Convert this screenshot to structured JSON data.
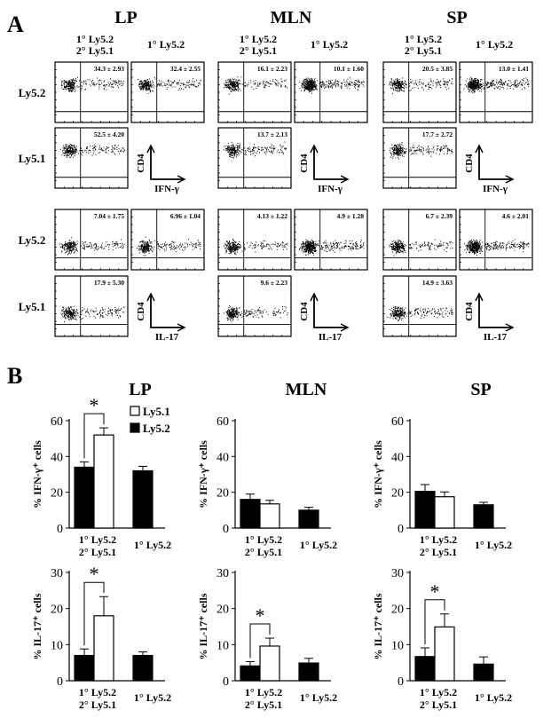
{
  "panel_a": {
    "letter": "A",
    "groups": [
      {
        "title": "LP",
        "col1_header": [
          "1° Ly5.2",
          "2° Ly5.1"
        ],
        "col2_header": "1° Ly5.2"
      },
      {
        "title": "MLN",
        "col1_header": [
          "1° Ly5.2",
          "2° Ly5.1"
        ],
        "col2_header": "1° Ly5.2"
      },
      {
        "title": "SP",
        "col1_header": [
          "1° Ly5.2",
          "2° Ly5.1"
        ],
        "col2_header": "1° Ly5.2"
      }
    ],
    "row_labels": [
      "Ly5.2",
      "Ly5.1",
      "Ly5.2",
      "Ly5.1"
    ],
    "plot_values": [
      [
        "34.3 ± 2.93",
        "32.4 ± 2.55",
        "16.1 ± 2.23",
        "10.1 ± 1.60",
        "20.5 ± 3.85",
        "13.0 ± 1.41"
      ],
      [
        "52.5 ± 4.20",
        "",
        "13.7 ± 2.13",
        "",
        "17.7 ± 2.72",
        ""
      ],
      [
        "7.04 ± 1.75",
        "6.96 ± 1.04",
        "4.13 ± 1.22",
        "4.9 ± 1.28",
        "6.7 ± 2.39",
        "4.6 ± 2.01"
      ],
      [
        "17.9 ± 5.30",
        "",
        "9.6 ± 2.23",
        "",
        "14.9 ± 3.63",
        ""
      ]
    ],
    "axis_labels": {
      "y": "CD4",
      "x_ifn": "IFN-γ",
      "x_il17": "IL-17"
    }
  },
  "panel_b": {
    "letter": "B",
    "titles": [
      "LP",
      "MLN",
      "SP"
    ],
    "legend": {
      "open_label": "Ly5.1",
      "filled_label": "Ly5.2"
    },
    "xgroup1": [
      "1° Ly5.2",
      "2° Ly5.1"
    ],
    "xgroup2": "1° Ly5.2",
    "ylabel_ifn": "% IFN-γ⁺ cells",
    "ylabel_il17": "% IL-17⁺ cells",
    "significance": "*"
  },
  "chart_data": [
    {
      "type": "bar",
      "title": "LP",
      "ylabel": "% IFN-γ+ cells",
      "ylim": [
        0,
        60
      ],
      "yticks": [
        0,
        20,
        40,
        60
      ],
      "categories": [
        "1° Ly5.2 / 2° Ly5.1",
        "1° Ly5.2"
      ],
      "series": [
        {
          "name": "Ly5.2",
          "values": [
            34,
            32
          ],
          "errors": [
            3,
            2.5
          ]
        },
        {
          "name": "Ly5.1",
          "values": [
            52,
            null
          ],
          "errors": [
            4,
            null
          ]
        }
      ],
      "significant_pair": true
    },
    {
      "type": "bar",
      "title": "MLN",
      "ylabel": "% IFN-γ+ cells",
      "ylim": [
        0,
        60
      ],
      "yticks": [
        0,
        20,
        40,
        60
      ],
      "categories": [
        "1° Ly5.2 / 2° Ly5.1",
        "1° Ly5.2"
      ],
      "series": [
        {
          "name": "Ly5.2",
          "values": [
            16,
            10
          ],
          "errors": [
            3,
            1.6
          ]
        },
        {
          "name": "Ly5.1",
          "values": [
            13.5,
            null
          ],
          "errors": [
            2,
            null
          ]
        }
      ],
      "significant_pair": false
    },
    {
      "type": "bar",
      "title": "SP",
      "ylabel": "% IFN-γ+ cells",
      "ylim": [
        0,
        60
      ],
      "yticks": [
        0,
        20,
        40,
        60
      ],
      "categories": [
        "1° Ly5.2 / 2° Ly5.1",
        "1° Ly5.2"
      ],
      "series": [
        {
          "name": "Ly5.2",
          "values": [
            20.5,
            13
          ],
          "errors": [
            3.8,
            1.4
          ]
        },
        {
          "name": "Ly5.1",
          "values": [
            17.5,
            null
          ],
          "errors": [
            2.7,
            null
          ]
        }
      ],
      "significant_pair": false
    },
    {
      "type": "bar",
      "title": "LP",
      "ylabel": "% IL-17+ cells",
      "ylim": [
        0,
        30
      ],
      "yticks": [
        0,
        10,
        20,
        30
      ],
      "categories": [
        "1° Ly5.2 / 2° Ly5.1",
        "1° Ly5.2"
      ],
      "series": [
        {
          "name": "Ly5.2",
          "values": [
            7,
            7
          ],
          "errors": [
            1.8,
            1
          ]
        },
        {
          "name": "Ly5.1",
          "values": [
            18,
            null
          ],
          "errors": [
            5.3,
            null
          ]
        }
      ],
      "significant_pair": true
    },
    {
      "type": "bar",
      "title": "MLN",
      "ylabel": "% IL-17+ cells",
      "ylim": [
        0,
        30
      ],
      "yticks": [
        0,
        10,
        20,
        30
      ],
      "categories": [
        "1° Ly5.2 / 2° Ly5.1",
        "1° Ly5.2"
      ],
      "series": [
        {
          "name": "Ly5.2",
          "values": [
            4.1,
            4.9
          ],
          "errors": [
            1.2,
            1.3
          ]
        },
        {
          "name": "Ly5.1",
          "values": [
            9.6,
            null
          ],
          "errors": [
            2.2,
            null
          ]
        }
      ],
      "significant_pair": true
    },
    {
      "type": "bar",
      "title": "SP",
      "ylabel": "% IL-17+ cells",
      "ylim": [
        0,
        30
      ],
      "yticks": [
        0,
        10,
        20,
        30
      ],
      "categories": [
        "1° Ly5.2 / 2° Ly5.1",
        "1° Ly5.2"
      ],
      "series": [
        {
          "name": "Ly5.2",
          "values": [
            6.7,
            4.6
          ],
          "errors": [
            2.4,
            2
          ]
        },
        {
          "name": "Ly5.1",
          "values": [
            14.9,
            null
          ],
          "errors": [
            3.6,
            null
          ]
        }
      ],
      "significant_pair": true
    }
  ]
}
